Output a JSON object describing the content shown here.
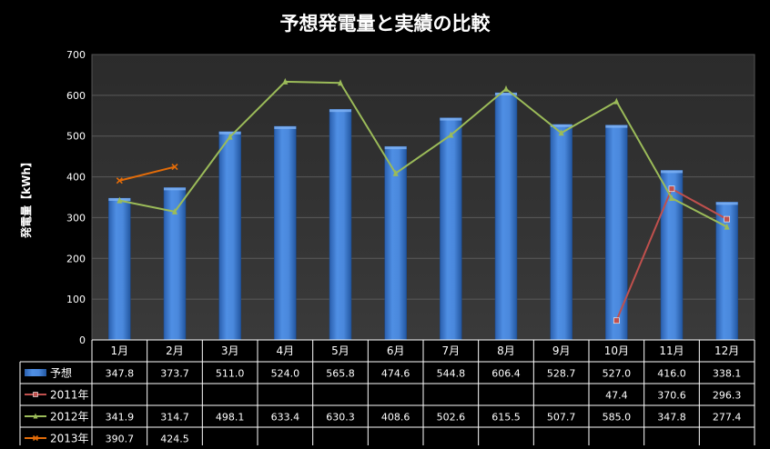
{
  "chart_data": {
    "type": "bar",
    "title": "予想発電量と実績の比較",
    "ylabel": "発電量【kWh】",
    "xlabel": "",
    "ylim": [
      0,
      700
    ],
    "yticks": [
      0,
      100,
      200,
      300,
      400,
      500,
      600,
      700
    ],
    "grid": true,
    "legend": "data-table",
    "categories": [
      "1月",
      "2月",
      "3月",
      "4月",
      "5月",
      "6月",
      "7月",
      "8月",
      "9月",
      "10月",
      "11月",
      "12月"
    ],
    "series": [
      {
        "name": "予想",
        "kind": "bar",
        "color": "#3f7fd6",
        "values": [
          347.8,
          373.7,
          511.0,
          524.0,
          565.8,
          474.6,
          544.8,
          606.4,
          528.7,
          527.0,
          416.0,
          338.1
        ],
        "labels": [
          "347.8",
          "373.7",
          "511.0",
          "524.0",
          "565.8",
          "474.6",
          "544.8",
          "606.4",
          "528.7",
          "527.0",
          "416.0",
          "338.1"
        ]
      },
      {
        "name": "2011年",
        "kind": "line",
        "color": "#c0504d",
        "marker": "square",
        "values": [
          null,
          null,
          null,
          null,
          null,
          null,
          null,
          null,
          null,
          47.4,
          370.6,
          296.3
        ],
        "labels": [
          "",
          "",
          "",
          "",
          "",
          "",
          "",
          "",
          "",
          "47.4",
          "370.6",
          "296.3"
        ]
      },
      {
        "name": "2012年",
        "kind": "line",
        "color": "#9bbb59",
        "marker": "triangle",
        "values": [
          341.9,
          314.7,
          498.1,
          633.4,
          630.3,
          408.6,
          502.6,
          615.5,
          507.7,
          585.0,
          347.8,
          277.4
        ],
        "labels": [
          "341.9",
          "314.7",
          "498.1",
          "633.4",
          "630.3",
          "408.6",
          "502.6",
          "615.5",
          "507.7",
          "585.0",
          "347.8",
          "277.4"
        ]
      },
      {
        "name": "2013年",
        "kind": "line",
        "color": "#e36c09",
        "marker": "cross",
        "values": [
          390.7,
          424.5,
          null,
          null,
          null,
          null,
          null,
          null,
          null,
          null,
          null,
          null
        ],
        "labels": [
          "390.7",
          "424.5",
          "",
          "",
          "",
          "",
          "",
          "",
          "",
          "",
          "",
          ""
        ]
      }
    ]
  }
}
